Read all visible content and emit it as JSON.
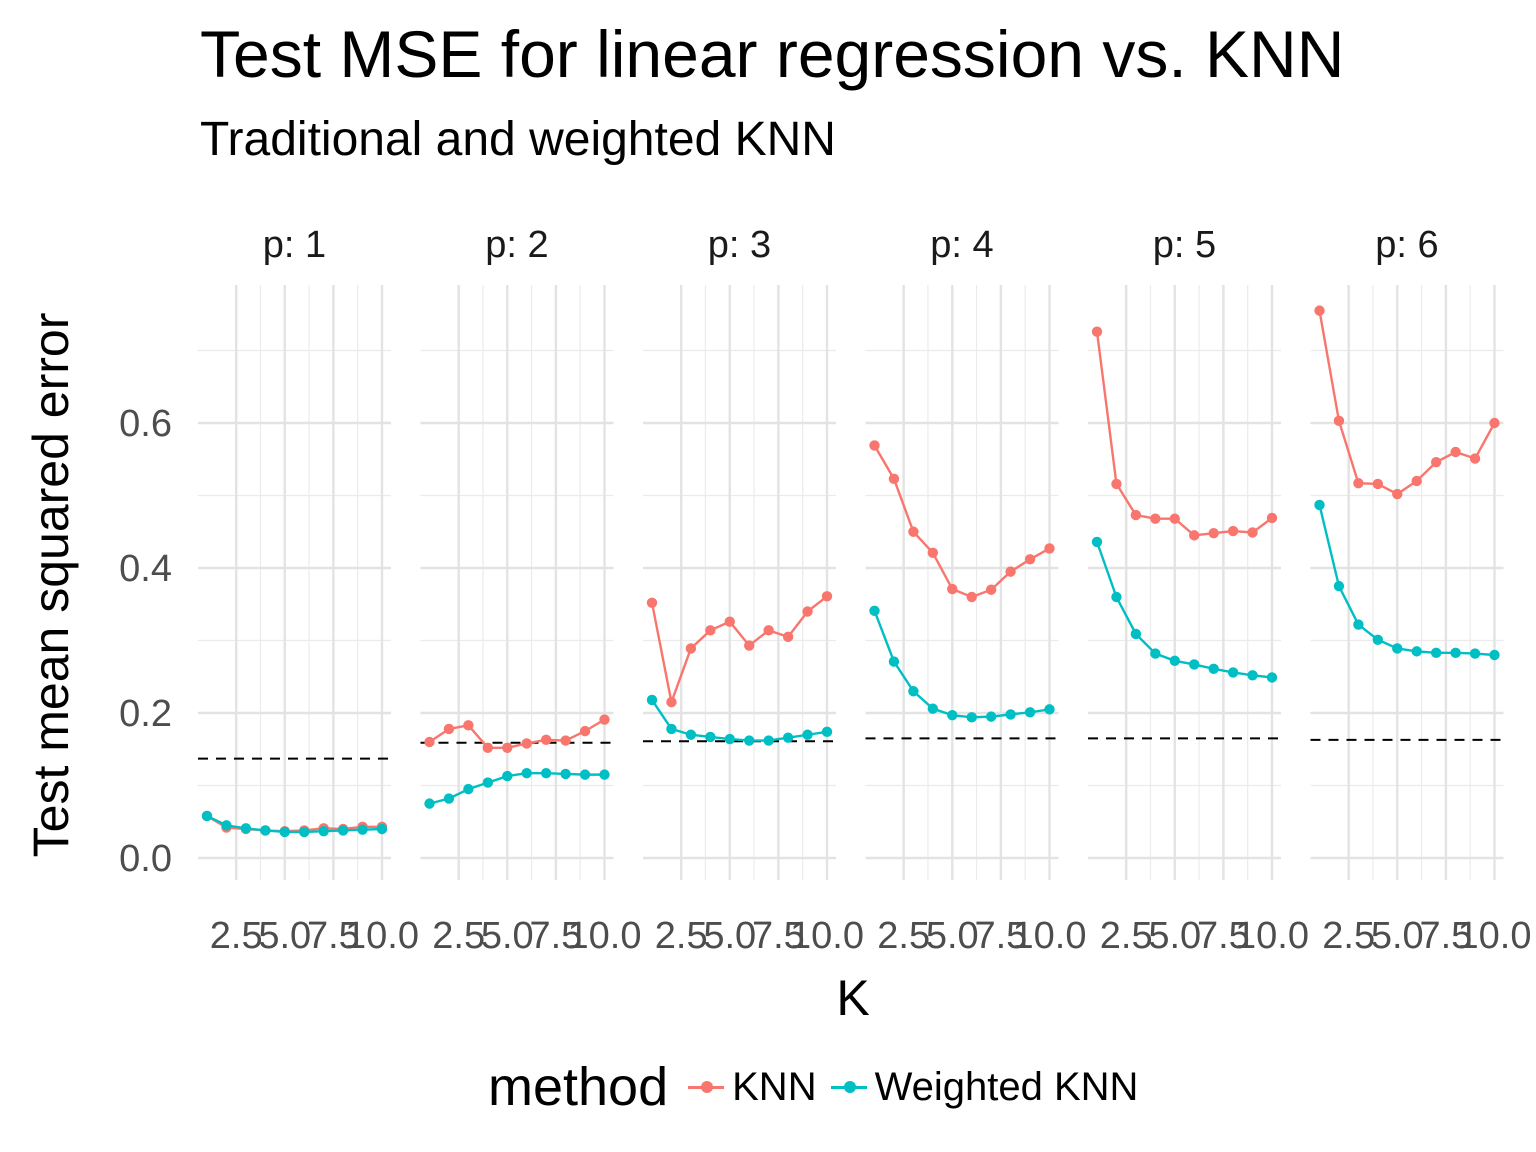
{
  "chart_data": {
    "type": "line",
    "title": "Test MSE for linear regression vs. KNN",
    "subtitle": "Traditional and weighted KNN",
    "xlabel": "K",
    "ylabel": "Test mean squared error",
    "x_ticks": [
      "2.5",
      "5.0",
      "7.5",
      "10.0"
    ],
    "y_ticks": [
      "0.0",
      "0.2",
      "0.4",
      "0.6"
    ],
    "xlim": [
      1,
      10
    ],
    "ylim": [
      0,
      0.78
    ],
    "grid": true,
    "legend_position": "bottom",
    "legend_title": "method",
    "colors": {
      "KNN": "#F8766D",
      "Weighted KNN": "#00BFC4",
      "linear_regression": "#000000"
    },
    "x": [
      1,
      2,
      3,
      4,
      5,
      6,
      7,
      8,
      9,
      10
    ],
    "panels": [
      {
        "label": "p: 1",
        "linear_regression_mse": 0.137,
        "series": [
          {
            "name": "KNN",
            "values": [
              0.058,
              0.042,
              0.04,
              0.038,
              0.037,
              0.038,
              0.041,
              0.04,
              0.043,
              0.043
            ]
          },
          {
            "name": "Weighted KNN",
            "values": [
              0.058,
              0.045,
              0.041,
              0.038,
              0.036,
              0.036,
              0.037,
              0.038,
              0.039,
              0.04
            ]
          }
        ]
      },
      {
        "label": "p: 2",
        "linear_regression_mse": 0.159,
        "series": [
          {
            "name": "KNN",
            "values": [
              0.16,
              0.178,
              0.183,
              0.152,
              0.152,
              0.158,
              0.163,
              0.162,
              0.175,
              0.191
            ]
          },
          {
            "name": "Weighted KNN",
            "values": [
              0.075,
              0.082,
              0.095,
              0.104,
              0.113,
              0.117,
              0.117,
              0.116,
              0.115,
              0.115
            ]
          }
        ]
      },
      {
        "label": "p: 3",
        "linear_regression_mse": 0.161,
        "series": [
          {
            "name": "KNN",
            "values": [
              0.352,
              0.215,
              0.289,
              0.314,
              0.326,
              0.293,
              0.314,
              0.305,
              0.34,
              0.361
            ]
          },
          {
            "name": "Weighted KNN",
            "values": [
              0.218,
              0.178,
              0.17,
              0.167,
              0.164,
              0.162,
              0.162,
              0.166,
              0.17,
              0.174
            ]
          }
        ]
      },
      {
        "label": "p: 4",
        "linear_regression_mse": 0.165,
        "series": [
          {
            "name": "KNN",
            "values": [
              0.569,
              0.523,
              0.45,
              0.421,
              0.371,
              0.36,
              0.37,
              0.395,
              0.412,
              0.427
            ]
          },
          {
            "name": "Weighted KNN",
            "values": [
              0.341,
              0.271,
              0.23,
              0.206,
              0.197,
              0.194,
              0.195,
              0.198,
              0.201,
              0.205
            ]
          }
        ]
      },
      {
        "label": "p: 5",
        "linear_regression_mse": 0.165,
        "series": [
          {
            "name": "KNN",
            "values": [
              0.726,
              0.516,
              0.473,
              0.468,
              0.468,
              0.445,
              0.448,
              0.451,
              0.449,
              0.469
            ]
          },
          {
            "name": "Weighted KNN",
            "values": [
              0.436,
              0.36,
              0.309,
              0.282,
              0.272,
              0.267,
              0.261,
              0.256,
              0.252,
              0.249
            ]
          }
        ]
      },
      {
        "label": "p: 6",
        "linear_regression_mse": 0.163,
        "series": [
          {
            "name": "KNN",
            "values": [
              0.755,
              0.603,
              0.517,
              0.516,
              0.502,
              0.52,
              0.546,
              0.56,
              0.551,
              0.6
            ]
          },
          {
            "name": "Weighted KNN",
            "values": [
              0.487,
              0.375,
              0.322,
              0.301,
              0.289,
              0.285,
              0.283,
              0.283,
              0.282,
              0.28
            ]
          }
        ]
      }
    ]
  }
}
